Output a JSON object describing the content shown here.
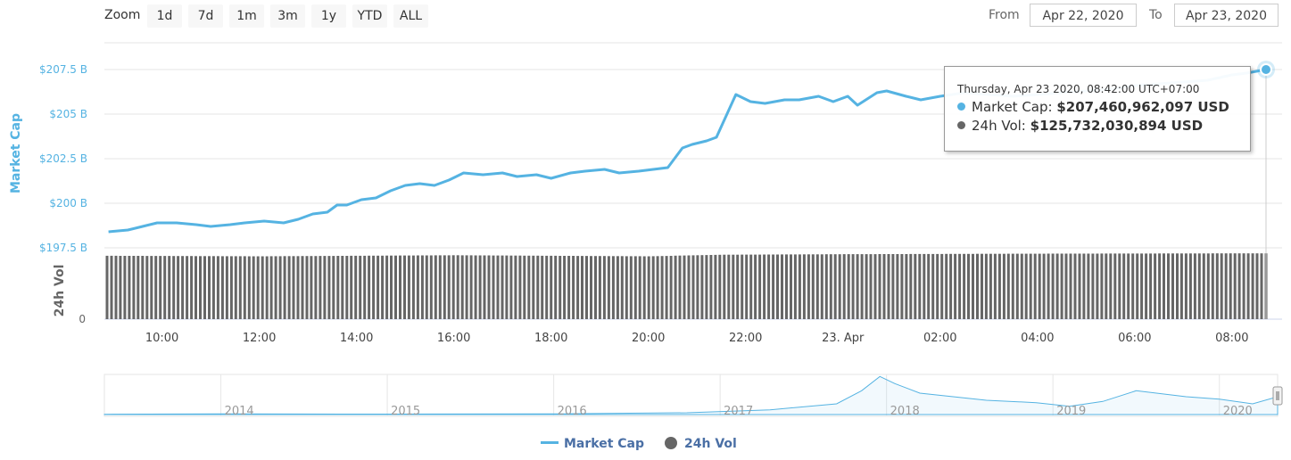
{
  "toolbar": {
    "zoom_label": "Zoom",
    "buttons": [
      {
        "label": "1d",
        "active": true
      },
      {
        "label": "7d",
        "active": false
      },
      {
        "label": "1m",
        "active": false
      },
      {
        "label": "3m",
        "active": false
      },
      {
        "label": "1y",
        "active": false
      },
      {
        "label": "YTD",
        "active": false
      },
      {
        "label": "ALL",
        "active": false
      }
    ],
    "from_label": "From",
    "from_value": "Apr 22, 2020",
    "to_label": "To",
    "to_value": "Apr 23, 2020"
  },
  "tooltip": {
    "date": "Thursday, Apr 23 2020, 08:42:00 UTC+07:00",
    "mc_label": "Market Cap:",
    "mc_value": "$207,460,962,097 USD",
    "vol_label": "24h Vol:",
    "vol_value": "$125,732,030,894 USD"
  },
  "legend": {
    "market_cap": "Market Cap",
    "volume": "24h Vol"
  },
  "colors": {
    "market_cap": "#55b3e2",
    "volume": "#666666",
    "grid": "#e6e6e6"
  },
  "chart_data": [
    {
      "type": "line",
      "ylabel": "Market Cap",
      "y_ticks": [
        "$207.5 B",
        "$205 B",
        "$202.5 B",
        "$200 B",
        "$197.5 B"
      ],
      "y_tick_values": [
        207.5,
        205,
        202.5,
        200,
        197.5
      ],
      "x_ticks": [
        "10:00",
        "12:00",
        "14:00",
        "16:00",
        "18:00",
        "20:00",
        "22:00",
        "23. Apr",
        "02:00",
        "04:00",
        "06:00",
        "08:00"
      ],
      "x_tick_hours": [
        10,
        12,
        14,
        16,
        18,
        20,
        22,
        24,
        26,
        28,
        30,
        32
      ],
      "x_range_hours": [
        8.87,
        32.7
      ],
      "ylim": [
        196.6,
        209.0
      ],
      "series": [
        {
          "name": "Market Cap",
          "x_hours": [
            8.9,
            9.3,
            9.6,
            9.9,
            10.3,
            10.7,
            11.0,
            11.4,
            11.7,
            12.1,
            12.5,
            12.8,
            13.1,
            13.4,
            13.6,
            13.8,
            14.1,
            14.4,
            14.7,
            15.0,
            15.3,
            15.6,
            15.9,
            16.2,
            16.6,
            17.0,
            17.3,
            17.7,
            18.0,
            18.4,
            18.7,
            19.1,
            19.4,
            19.8,
            20.1,
            20.4,
            20.7,
            20.9,
            21.2,
            21.4,
            21.6,
            21.8,
            22.1,
            22.4,
            22.8,
            23.1,
            23.5,
            23.8,
            24.1,
            24.3,
            24.7,
            24.9,
            25.3,
            25.6,
            26.0,
            26.5,
            27.0,
            27.5,
            28.0,
            28.5,
            29.0,
            29.5,
            30.0,
            30.5,
            31.0,
            31.5,
            32.0,
            32.3,
            32.7
          ],
          "values": [
            198.4,
            198.5,
            198.7,
            198.9,
            198.9,
            198.8,
            198.7,
            198.8,
            198.9,
            199.0,
            198.9,
            199.1,
            199.4,
            199.5,
            199.9,
            199.9,
            200.2,
            200.3,
            200.7,
            201.0,
            201.1,
            201.0,
            201.3,
            201.7,
            201.6,
            201.7,
            201.5,
            201.6,
            201.4,
            201.7,
            201.8,
            201.9,
            201.7,
            201.8,
            201.9,
            202.0,
            203.1,
            203.3,
            203.5,
            203.7,
            204.9,
            206.1,
            205.7,
            205.6,
            205.8,
            205.8,
            206.0,
            205.7,
            206.0,
            205.5,
            206.2,
            206.3,
            206.0,
            205.8,
            206.0,
            206.2,
            206.1,
            206.0,
            206.1,
            206.2,
            206.3,
            206.4,
            206.6,
            206.7,
            206.8,
            206.9,
            207.2,
            207.3,
            207.5
          ]
        }
      ]
    },
    {
      "type": "bar",
      "ylabel": "24h Vol",
      "y_ticks": [
        "0"
      ],
      "series": [
        {
          "name": "24h Vol",
          "x_hours": [
            8.9,
            12.0,
            16.0,
            20.0,
            21.5,
            24.0,
            28.0,
            32.7
          ],
          "values": [
            121,
            120,
            122,
            120,
            123,
            124,
            125,
            125.7
          ]
        }
      ]
    },
    {
      "type": "area",
      "x_ticks": [
        "2014",
        "2015",
        "2016",
        "2017",
        "2018",
        "2019",
        "2020"
      ],
      "x_tick_years": [
        2014,
        2015,
        2016,
        2017,
        2018,
        2019,
        2020
      ],
      "x_range_years": [
        2013.3,
        2020.35
      ],
      "series": [
        {
          "name": "Market Cap",
          "x_years": [
            2013.3,
            2014.0,
            2015.0,
            2016.0,
            2016.8,
            2017.3,
            2017.7,
            2017.85,
            2017.96,
            2018.05,
            2018.2,
            2018.4,
            2018.6,
            2018.9,
            2019.1,
            2019.3,
            2019.5,
            2019.8,
            2020.0,
            2020.2,
            2020.35
          ],
          "values": [
            2,
            5,
            4,
            6,
            15,
            40,
            90,
            200,
            320,
            260,
            180,
            150,
            120,
            100,
            70,
            110,
            200,
            150,
            130,
            90,
            150
          ]
        }
      ]
    }
  ]
}
